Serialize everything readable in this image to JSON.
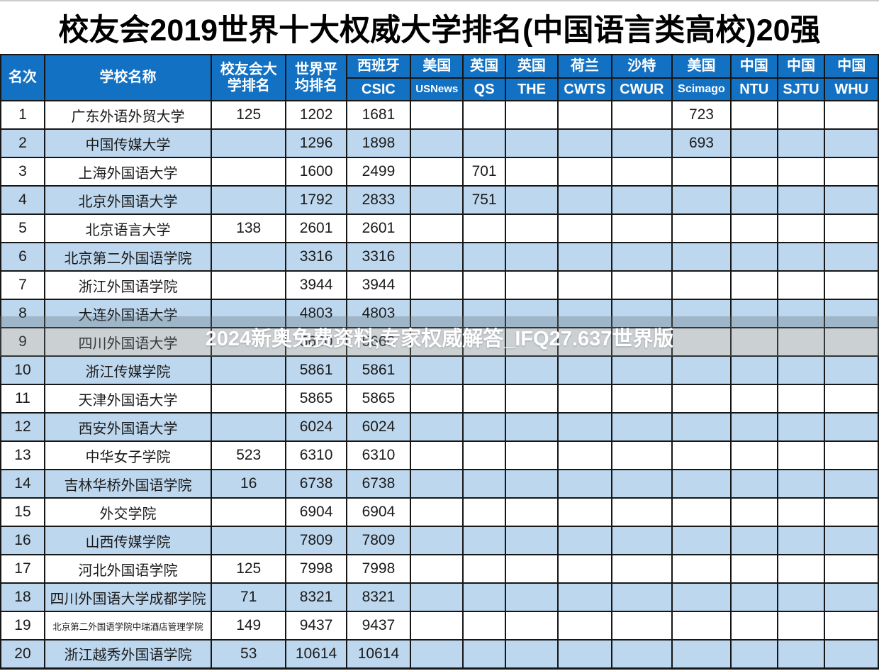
{
  "title": "校友会2019世界十大权威大学排名(中国语言类高校)20强",
  "watermark": {
    "text": "2024新奥免费资料,专家权威解答_IFQ27.637世界版"
  },
  "colors": {
    "header_bg": "#1371c3",
    "header_text": "#ffffff",
    "row_alt_bg": "#bdd7ee",
    "row_bg": "#ffffff",
    "border": "#161616",
    "watermark_band": "rgba(104,117,127,0.34)",
    "watermark_text": "#ffffff",
    "title_text": "#000000"
  },
  "chart_data": {
    "type": "table",
    "title": "校友会2019世界十大权威大学排名(中国语言类高校)20强",
    "columns": [
      {
        "id": "rank",
        "label": "名次",
        "width": 5.0
      },
      {
        "id": "school",
        "label": "学校名称",
        "width": 19.0
      },
      {
        "id": "cuaa",
        "label": "校友会大\n学排名",
        "width": 8.5
      },
      {
        "id": "world",
        "label": "世界平\n均排名",
        "width": 6.9
      },
      {
        "id": "csic",
        "label": "西班牙",
        "sub": "CSIC",
        "width": 7.3
      },
      {
        "id": "usnews",
        "label": "美国",
        "sub": "USNews",
        "width": 6.0,
        "sub_size": "small"
      },
      {
        "id": "qs",
        "label": "英国",
        "sub": "QS",
        "width": 4.8
      },
      {
        "id": "the",
        "label": "英国",
        "sub": "THE",
        "width": 6.0
      },
      {
        "id": "cwts",
        "label": "荷兰",
        "sub": "CWTS",
        "width": 6.1
      },
      {
        "id": "cwur",
        "label": "沙特",
        "sub": "CWUR",
        "width": 6.9
      },
      {
        "id": "scimago",
        "label": "美国",
        "sub": "Scimago",
        "width": 6.7,
        "sub_size": "mid"
      },
      {
        "id": "ntu",
        "label": "中国",
        "sub": "NTU",
        "width": 5.3
      },
      {
        "id": "sjtu",
        "label": "中国",
        "sub": "SJTU",
        "width": 5.4
      },
      {
        "id": "whu",
        "label": "中国",
        "sub": "WHU",
        "width": 6.1
      }
    ],
    "rows": [
      {
        "rank": "1",
        "school": "广东外语外贸大学",
        "cuaa": "125",
        "world": "1202",
        "csic": "1681",
        "usnews": "",
        "qs": "",
        "the": "",
        "cwts": "",
        "cwur": "",
        "scimago": "723",
        "ntu": "",
        "sjtu": "",
        "whu": ""
      },
      {
        "rank": "2",
        "school": "中国传媒大学",
        "cuaa": "",
        "world": "1296",
        "csic": "1898",
        "usnews": "",
        "qs": "",
        "the": "",
        "cwts": "",
        "cwur": "",
        "scimago": "693",
        "ntu": "",
        "sjtu": "",
        "whu": ""
      },
      {
        "rank": "3",
        "school": "上海外国语大学",
        "cuaa": "",
        "world": "1600",
        "csic": "2499",
        "usnews": "",
        "qs": "701",
        "the": "",
        "cwts": "",
        "cwur": "",
        "scimago": "",
        "ntu": "",
        "sjtu": "",
        "whu": ""
      },
      {
        "rank": "4",
        "school": "北京外国语大学",
        "cuaa": "",
        "world": "1792",
        "csic": "2833",
        "usnews": "",
        "qs": "751",
        "the": "",
        "cwts": "",
        "cwur": "",
        "scimago": "",
        "ntu": "",
        "sjtu": "",
        "whu": ""
      },
      {
        "rank": "5",
        "school": "北京语言大学",
        "cuaa": "138",
        "world": "2601",
        "csic": "2601",
        "usnews": "",
        "qs": "",
        "the": "",
        "cwts": "",
        "cwur": "",
        "scimago": "",
        "ntu": "",
        "sjtu": "",
        "whu": ""
      },
      {
        "rank": "6",
        "school": "北京第二外国语学院",
        "cuaa": "",
        "world": "3316",
        "csic": "3316",
        "usnews": "",
        "qs": "",
        "the": "",
        "cwts": "",
        "cwur": "",
        "scimago": "",
        "ntu": "",
        "sjtu": "",
        "whu": ""
      },
      {
        "rank": "7",
        "school": "浙江外国语学院",
        "cuaa": "",
        "world": "3944",
        "csic": "3944",
        "usnews": "",
        "qs": "",
        "the": "",
        "cwts": "",
        "cwur": "",
        "scimago": "",
        "ntu": "",
        "sjtu": "",
        "whu": ""
      },
      {
        "rank": "8",
        "school": "大连外国语大学",
        "cuaa": "",
        "world": "4803",
        "csic": "4803",
        "usnews": "",
        "qs": "",
        "the": "",
        "cwts": "",
        "cwur": "",
        "scimago": "",
        "ntu": "",
        "sjtu": "",
        "whu": ""
      },
      {
        "rank": "9",
        "school": "四川外国语大学",
        "cuaa": "",
        "world": "5660",
        "csic": "5660",
        "usnews": "",
        "qs": "",
        "the": "",
        "cwts": "",
        "cwur": "",
        "scimago": "",
        "ntu": "",
        "sjtu": "",
        "whu": ""
      },
      {
        "rank": "10",
        "school": "浙江传媒学院",
        "cuaa": "",
        "world": "5861",
        "csic": "5861",
        "usnews": "",
        "qs": "",
        "the": "",
        "cwts": "",
        "cwur": "",
        "scimago": "",
        "ntu": "",
        "sjtu": "",
        "whu": ""
      },
      {
        "rank": "11",
        "school": "天津外国语大学",
        "cuaa": "",
        "world": "5865",
        "csic": "5865",
        "usnews": "",
        "qs": "",
        "the": "",
        "cwts": "",
        "cwur": "",
        "scimago": "",
        "ntu": "",
        "sjtu": "",
        "whu": ""
      },
      {
        "rank": "12",
        "school": "西安外国语大学",
        "cuaa": "",
        "world": "6024",
        "csic": "6024",
        "usnews": "",
        "qs": "",
        "the": "",
        "cwts": "",
        "cwur": "",
        "scimago": "",
        "ntu": "",
        "sjtu": "",
        "whu": ""
      },
      {
        "rank": "13",
        "school": "中华女子学院",
        "cuaa": "523",
        "world": "6310",
        "csic": "6310",
        "usnews": "",
        "qs": "",
        "the": "",
        "cwts": "",
        "cwur": "",
        "scimago": "",
        "ntu": "",
        "sjtu": "",
        "whu": ""
      },
      {
        "rank": "14",
        "school": "吉林华桥外国语学院",
        "cuaa": "16",
        "world": "6738",
        "csic": "6738",
        "usnews": "",
        "qs": "",
        "the": "",
        "cwts": "",
        "cwur": "",
        "scimago": "",
        "ntu": "",
        "sjtu": "",
        "whu": ""
      },
      {
        "rank": "15",
        "school": "外交学院",
        "cuaa": "",
        "world": "6904",
        "csic": "6904",
        "usnews": "",
        "qs": "",
        "the": "",
        "cwts": "",
        "cwur": "",
        "scimago": "",
        "ntu": "",
        "sjtu": "",
        "whu": ""
      },
      {
        "rank": "16",
        "school": "山西传媒学院",
        "cuaa": "",
        "world": "7809",
        "csic": "7809",
        "usnews": "",
        "qs": "",
        "the": "",
        "cwts": "",
        "cwur": "",
        "scimago": "",
        "ntu": "",
        "sjtu": "",
        "whu": ""
      },
      {
        "rank": "17",
        "school": "河北外国语学院",
        "cuaa": "125",
        "world": "7998",
        "csic": "7998",
        "usnews": "",
        "qs": "",
        "the": "",
        "cwts": "",
        "cwur": "",
        "scimago": "",
        "ntu": "",
        "sjtu": "",
        "whu": ""
      },
      {
        "rank": "18",
        "school": "四川外国语大学成都学院",
        "cuaa": "71",
        "world": "8321",
        "csic": "8321",
        "usnews": "",
        "qs": "",
        "the": "",
        "cwts": "",
        "cwur": "",
        "scimago": "",
        "ntu": "",
        "sjtu": "",
        "whu": ""
      },
      {
        "rank": "19",
        "school": "北京第二外国语学院中瑞酒店管理学院",
        "school_small": true,
        "cuaa": "149",
        "world": "9437",
        "csic": "9437",
        "usnews": "",
        "qs": "",
        "the": "",
        "cwts": "",
        "cwur": "",
        "scimago": "",
        "ntu": "",
        "sjtu": "",
        "whu": ""
      },
      {
        "rank": "20",
        "school": "浙江越秀外国语学院",
        "cuaa": "53",
        "world": "10614",
        "csic": "10614",
        "usnews": "",
        "qs": "",
        "the": "",
        "cwts": "",
        "cwur": "",
        "scimago": "",
        "ntu": "",
        "sjtu": "",
        "whu": ""
      }
    ]
  }
}
